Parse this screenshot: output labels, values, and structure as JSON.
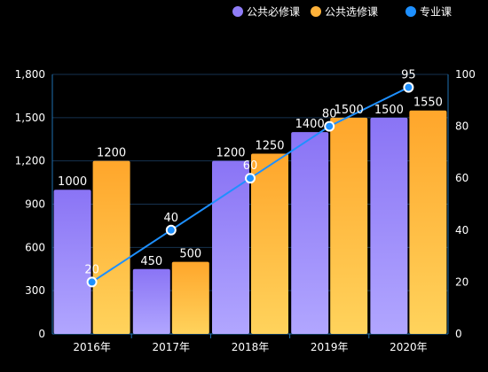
{
  "chart_data": {
    "type": "bar",
    "title": "",
    "xlabel": "",
    "ylabel": "",
    "categories": [
      "2016年",
      "2017年",
      "2018年",
      "2019年",
      "2020年"
    ],
    "series": [
      {
        "name": "公共必修课",
        "type": "bar",
        "axis": "left",
        "values": [
          1000,
          450,
          1200,
          1400,
          1500
        ]
      },
      {
        "name": "公共选修课",
        "type": "bar",
        "axis": "left",
        "values": [
          1200,
          500,
          1250,
          1500,
          1550
        ]
      },
      {
        "name": "专业课",
        "type": "line",
        "axis": "right",
        "values": [
          20,
          40,
          60,
          80,
          95
        ]
      }
    ],
    "ylim": [
      0,
      1800
    ],
    "y_ticks": [
      "0",
      "300",
      "600",
      "900",
      "1,200",
      "1,500",
      "1,800"
    ],
    "y2lim": [
      0,
      100
    ],
    "y2_ticks": [
      "0",
      "20",
      "40",
      "60",
      "80",
      "100"
    ],
    "grid": true,
    "legend_position": "top-right",
    "colors": {
      "公共必修课": "#8f7cf7",
      "公共选修课": "#ffb23a",
      "专业课": "#1e90ff"
    }
  }
}
